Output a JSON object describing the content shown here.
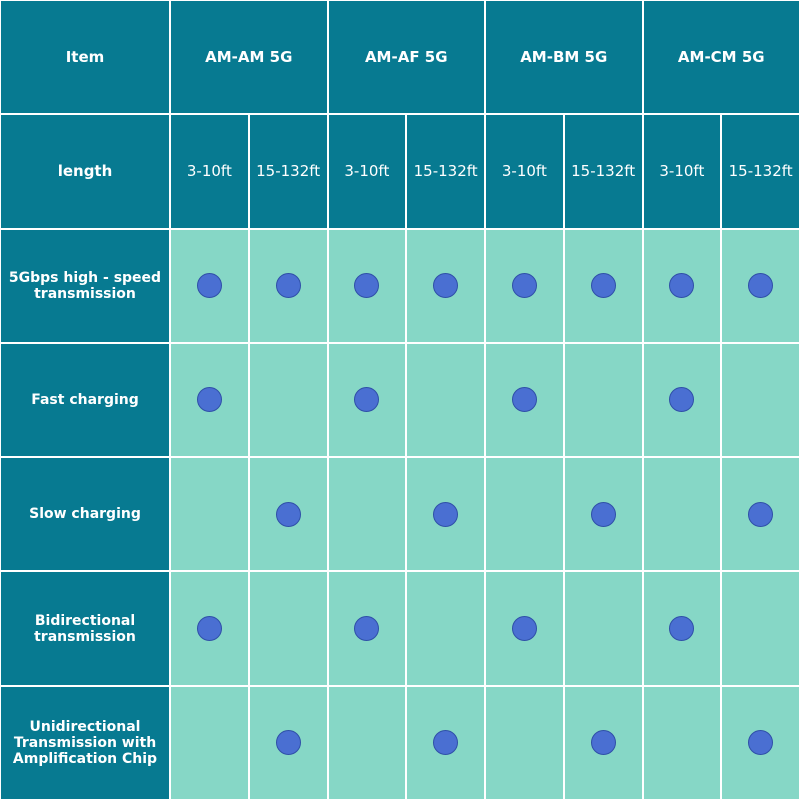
{
  "table": {
    "header": {
      "item": "Item",
      "groups": [
        "AM-AM 5G",
        "AM-AF 5G",
        "AM-BM 5G",
        "AM-CM 5G"
      ]
    },
    "length_row": {
      "label": "length",
      "lengths": [
        "3-10ft",
        "15-132ft",
        "3-10ft",
        "15-132ft",
        "3-10ft",
        "15-132ft",
        "3-10ft",
        "15-132ft"
      ]
    },
    "rows": [
      {
        "label": "5Gbps high - speed transmission",
        "cells": [
          true,
          true,
          true,
          true,
          true,
          true,
          true,
          true
        ]
      },
      {
        "label": "Fast charging",
        "cells": [
          true,
          false,
          true,
          false,
          true,
          false,
          true,
          false
        ]
      },
      {
        "label": "Slow charging",
        "cells": [
          false,
          true,
          false,
          true,
          false,
          true,
          false,
          true
        ]
      },
      {
        "label": "Bidirectional transmission",
        "cells": [
          true,
          false,
          true,
          false,
          true,
          false,
          true,
          false
        ]
      },
      {
        "label": "Unidirectional Transmission with Amplification Chip",
        "cells": [
          false,
          true,
          false,
          true,
          false,
          true,
          false,
          true
        ]
      }
    ]
  }
}
